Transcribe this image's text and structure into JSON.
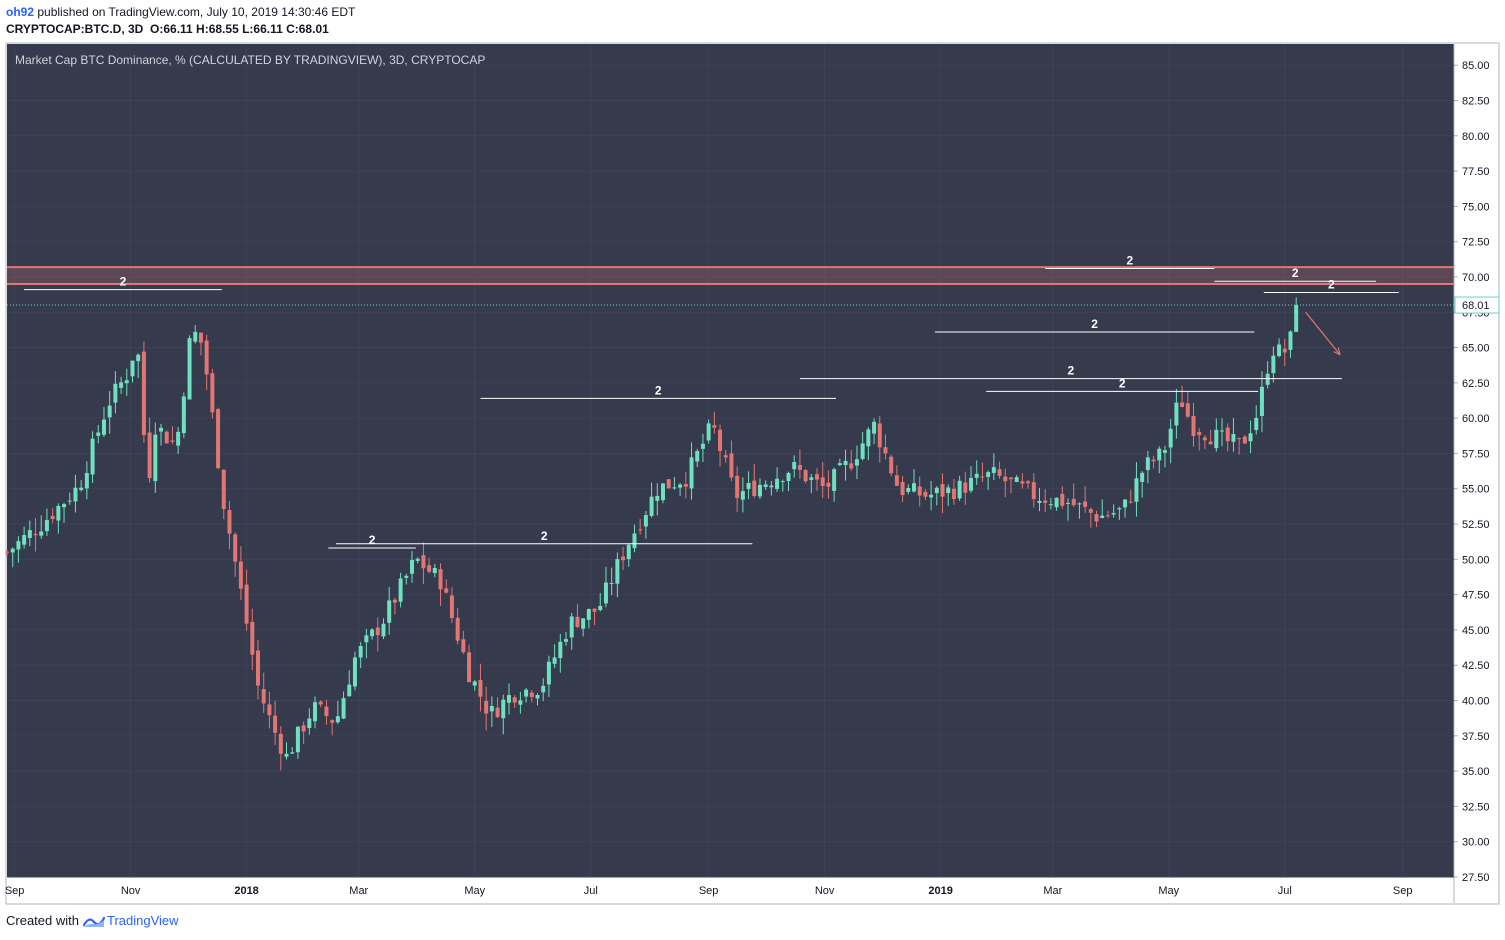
{
  "header": {
    "author": "oh92",
    "published": "published on TradingView.com, July 10, 2019 14:30:46 EDT",
    "symbol": "CRYPTOCAP:BTC.D, 3D",
    "ohlc": "O:66.11 H:68.55 L:66.11 C:68.01"
  },
  "footer": {
    "created_with": "Created with",
    "brand": "TradingView",
    "brand_icon": "tradingview-logo-icon"
  },
  "colors": {
    "background": "#363a4d",
    "up": "#6fe0c0",
    "down": "#e27673",
    "resistance_zone": "#e27673",
    "price_line": "#5fd3c9",
    "annotation": "#ffffff"
  },
  "chart_data": {
    "type": "candlestick",
    "title": "Market Cap BTC Dominance, % (CALCULATED BY TRADINGVIEW), 3D, CRYPTOCAP",
    "xlabel": "",
    "ylabel": "",
    "ylim": [
      27.5,
      86.5
    ],
    "y_ticks": [
      "85.00",
      "82.50",
      "80.00",
      "77.50",
      "75.00",
      "72.50",
      "70.00",
      "67.50",
      "65.00",
      "62.50",
      "60.00",
      "57.50",
      "55.00",
      "52.50",
      "50.00",
      "47.50",
      "45.00",
      "42.50",
      "40.00",
      "37.50",
      "35.00",
      "32.50",
      "30.00",
      "27.50"
    ],
    "x_range": [
      "2017-08-28",
      "2019-09-28"
    ],
    "x_ticks": [
      {
        "label": "Sep",
        "date": "2017-09-01"
      },
      {
        "label": "Nov",
        "date": "2017-11-01"
      },
      {
        "label": "2018",
        "date": "2018-01-01"
      },
      {
        "label": "Mar",
        "date": "2018-03-01"
      },
      {
        "label": "May",
        "date": "2018-05-01"
      },
      {
        "label": "Jul",
        "date": "2018-07-01"
      },
      {
        "label": "Sep",
        "date": "2018-09-01"
      },
      {
        "label": "Nov",
        "date": "2018-11-01"
      },
      {
        "label": "2019",
        "date": "2019-01-01"
      },
      {
        "label": "Mar",
        "date": "2019-03-01"
      },
      {
        "label": "May",
        "date": "2019-05-01"
      },
      {
        "label": "Jul",
        "date": "2019-07-01"
      },
      {
        "label": "Sep",
        "date": "2019-09-01"
      }
    ],
    "last_price": "68.01",
    "last_price_value": 68.01,
    "resistance_zone": [
      69.5,
      70.7
    ],
    "close_anchors": [
      {
        "date": "2017-08-28",
        "close": 50.5
      },
      {
        "date": "2017-09-15",
        "close": 52.5
      },
      {
        "date": "2017-10-05",
        "close": 55.2
      },
      {
        "date": "2017-10-20",
        "close": 61.0
      },
      {
        "date": "2017-11-01",
        "close": 63.5
      },
      {
        "date": "2017-11-04",
        "close": 66.2
      },
      {
        "date": "2017-11-10",
        "close": 55.2
      },
      {
        "date": "2017-11-14",
        "close": 59.5
      },
      {
        "date": "2017-11-25",
        "close": 58.0
      },
      {
        "date": "2017-12-03",
        "close": 66.3
      },
      {
        "date": "2017-12-09",
        "close": 65.2
      },
      {
        "date": "2017-12-20",
        "close": 54.0
      },
      {
        "date": "2017-12-30",
        "close": 47.0
      },
      {
        "date": "2018-01-07",
        "close": 41.0
      },
      {
        "date": "2018-01-15",
        "close": 38.0
      },
      {
        "date": "2018-01-22",
        "close": 36.0
      },
      {
        "date": "2018-02-05",
        "close": 39.5
      },
      {
        "date": "2018-02-17",
        "close": 38.5
      },
      {
        "date": "2018-02-27",
        "close": 43.0
      },
      {
        "date": "2018-03-13",
        "close": 45.5
      },
      {
        "date": "2018-03-31",
        "close": 50.0
      },
      {
        "date": "2018-04-13",
        "close": 48.5
      },
      {
        "date": "2018-04-28",
        "close": 42.0
      },
      {
        "date": "2018-05-09",
        "close": 39.0
      },
      {
        "date": "2018-05-21",
        "close": 40.5
      },
      {
        "date": "2018-06-05",
        "close": 41.0
      },
      {
        "date": "2018-06-20",
        "close": 45.5
      },
      {
        "date": "2018-07-05",
        "close": 46.5
      },
      {
        "date": "2018-07-20",
        "close": 51.0
      },
      {
        "date": "2018-08-05",
        "close": 55.0
      },
      {
        "date": "2018-08-20",
        "close": 55.8
      },
      {
        "date": "2018-09-03",
        "close": 59.5
      },
      {
        "date": "2018-09-15",
        "close": 54.5
      },
      {
        "date": "2018-10-01",
        "close": 55.5
      },
      {
        "date": "2018-10-15",
        "close": 56.5
      },
      {
        "date": "2018-11-01",
        "close": 55.0
      },
      {
        "date": "2018-11-15",
        "close": 57.0
      },
      {
        "date": "2018-11-27",
        "close": 59.5
      },
      {
        "date": "2018-12-10",
        "close": 55.0
      },
      {
        "date": "2018-12-25",
        "close": 54.5
      },
      {
        "date": "2019-01-10",
        "close": 55.0
      },
      {
        "date": "2019-01-28",
        "close": 56.0
      },
      {
        "date": "2019-02-20",
        "close": 54.5
      },
      {
        "date": "2019-03-10",
        "close": 54.0
      },
      {
        "date": "2019-03-25",
        "close": 53.0
      },
      {
        "date": "2019-04-07",
        "close": 53.5
      },
      {
        "date": "2019-04-18",
        "close": 56.5
      },
      {
        "date": "2019-04-28",
        "close": 57.5
      },
      {
        "date": "2019-05-07",
        "close": 61.5
      },
      {
        "date": "2019-05-13",
        "close": 59.5
      },
      {
        "date": "2019-05-28",
        "close": 58.5
      },
      {
        "date": "2019-06-08",
        "close": 58.0
      },
      {
        "date": "2019-06-17",
        "close": 60.5
      },
      {
        "date": "2019-06-24",
        "close": 65.0
      },
      {
        "date": "2019-06-30",
        "close": 64.5
      },
      {
        "date": "2019-07-06",
        "close": 66.1
      },
      {
        "date": "2019-07-09",
        "close": 68.01
      }
    ],
    "level_lines": [
      {
        "label": "2",
        "value": 69.1,
        "start": "2017-09-06",
        "end": "2017-12-19"
      },
      {
        "label": "2",
        "value": 50.8,
        "start": "2018-02-13",
        "end": "2018-03-31"
      },
      {
        "label": "2",
        "value": 51.1,
        "start": "2018-02-17",
        "end": "2018-09-24"
      },
      {
        "label": "2",
        "value": 61.4,
        "start": "2018-05-04",
        "end": "2018-11-07"
      },
      {
        "label": "2",
        "value": 62.8,
        "start": "2018-10-19",
        "end": "2019-07-31"
      },
      {
        "label": "2",
        "value": 66.1,
        "start": "2018-12-29",
        "end": "2019-06-15"
      },
      {
        "label": "2",
        "value": 61.9,
        "start": "2019-01-25",
        "end": "2019-06-17"
      },
      {
        "label": "2",
        "value": 70.6,
        "start": "2019-02-25",
        "end": "2019-05-25"
      },
      {
        "label": "2",
        "value": 69.7,
        "start": "2019-05-25",
        "end": "2019-08-18"
      },
      {
        "label": "2",
        "value": 68.9,
        "start": "2019-06-20",
        "end": "2019-08-30"
      }
    ],
    "projection_arrow": {
      "from": {
        "date": "2019-07-12",
        "value": 67.5
      },
      "to": {
        "date": "2019-07-30",
        "value": 64.5
      }
    }
  }
}
